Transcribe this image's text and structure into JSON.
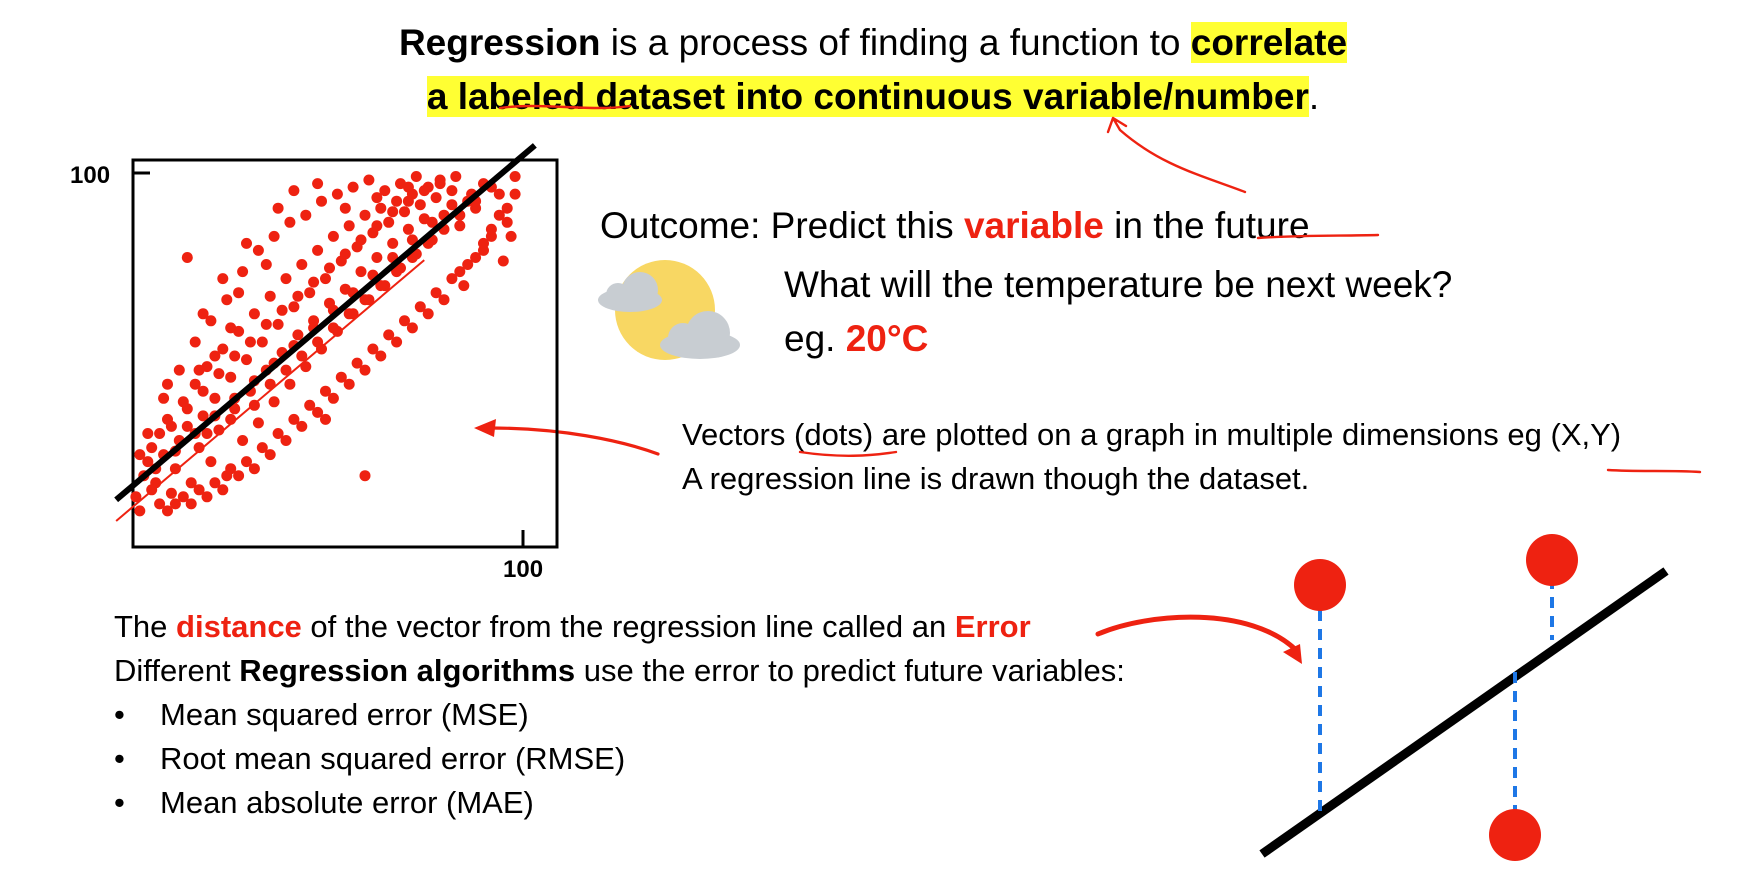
{
  "headline": {
    "term": "Regression",
    "middle": " is a process of finding a function to ",
    "highlight_1": "correlate ",
    "highlight_2a": "a ",
    "highlight_2b": "labeled",
    "highlight_2c": " dataset into continuous variable/number",
    "end": "."
  },
  "outcome": {
    "prefix": "Outcome: Predict this ",
    "keyword": "variable",
    "middle": " in the",
    "suffix": " future"
  },
  "question": "What will the temperature be next week?",
  "example": {
    "prefix": "eg. ",
    "value": "20°C"
  },
  "vectors": {
    "line1_a": "Vectors ",
    "line1_b": "(dots)",
    "line1_c": " are plotted on a graph in multiple dimensions eg ",
    "line1_d": "(X,Y)",
    "line2": "A regression line is drawn though the dataset."
  },
  "error_text": {
    "prefix": "The ",
    "distance": "distance",
    "middle": " of the vector from the regression line called an ",
    "error": "Error"
  },
  "algorithms_intro": {
    "prefix": "Different ",
    "bold": "Regression algorithms",
    "suffix": " use the error to predict future variables:"
  },
  "algorithms": [
    "Mean squared error (MSE)",
    "Root mean squared error (RMSE)",
    "Mean absolute error (MAE)"
  ],
  "colors": {
    "accent_red": "#ee2211",
    "highlight": "#ffff33",
    "error_line": "#1e77e6",
    "cloud": "#c8cdd2",
    "sun": "#f8d763"
  },
  "icons": {
    "weather": "partly-cloudy-icon"
  },
  "chart_data": {
    "type": "scatter",
    "title": "",
    "xlabel": "",
    "ylabel": "",
    "x_tick_labels": [
      "100"
    ],
    "y_tick_labels": [
      "100"
    ],
    "xlim": [
      0,
      100
    ],
    "ylim": [
      0,
      100
    ],
    "grid": false,
    "regression_line": {
      "slope": 0.95,
      "intercept": 10
    },
    "points": [
      [
        2,
        8
      ],
      [
        4,
        14
      ],
      [
        5,
        18
      ],
      [
        7,
        12
      ],
      [
        8,
        26
      ],
      [
        9,
        20
      ],
      [
        10,
        30
      ],
      [
        11,
        9
      ],
      [
        12,
        16
      ],
      [
        13,
        24
      ],
      [
        14,
        35
      ],
      [
        15,
        28
      ],
      [
        16,
        12
      ],
      [
        17,
        40
      ],
      [
        18,
        22
      ],
      [
        19,
        31
      ],
      [
        20,
        45
      ],
      [
        21,
        18
      ],
      [
        22,
        36
      ],
      [
        23,
        27
      ],
      [
        24,
        50
      ],
      [
        25,
        14
      ],
      [
        26,
        42
      ],
      [
        27,
        33
      ],
      [
        28,
        55
      ],
      [
        29,
        24
      ],
      [
        30,
        47
      ],
      [
        31,
        38
      ],
      [
        32,
        60
      ],
      [
        33,
        29
      ],
      [
        34,
        52
      ],
      [
        35,
        44
      ],
      [
        36,
        65
      ],
      [
        37,
        35
      ],
      [
        38,
        57
      ],
      [
        39,
        49
      ],
      [
        40,
        70
      ],
      [
        41,
        40
      ],
      [
        42,
        62
      ],
      [
        43,
        54
      ],
      [
        44,
        74
      ],
      [
        45,
        45
      ],
      [
        46,
        66
      ],
      [
        47,
        58
      ],
      [
        48,
        78
      ],
      [
        49,
        50
      ],
      [
        50,
        70
      ],
      [
        51,
        63
      ],
      [
        52,
        82
      ],
      [
        53,
        55
      ],
      [
        54,
        75
      ],
      [
        55,
        67
      ],
      [
        56,
        85
      ],
      [
        57,
        60
      ],
      [
        58,
        79
      ],
      [
        59,
        72
      ],
      [
        60,
        88
      ],
      [
        61,
        64
      ],
      [
        62,
        83
      ],
      [
        63,
        76
      ],
      [
        64,
        90
      ],
      [
        65,
        68
      ],
      [
        66,
        86
      ],
      [
        67,
        80
      ],
      [
        68,
        92
      ],
      [
        69,
        73
      ],
      [
        70,
        89
      ],
      [
        71,
        84
      ],
      [
        72,
        94
      ],
      [
        73,
        77
      ],
      [
        74,
        91
      ],
      [
        75,
        87
      ],
      [
        76,
        96
      ],
      [
        77,
        81
      ],
      [
        78,
        93
      ],
      [
        80,
        88
      ],
      [
        82,
        95
      ],
      [
        84,
        85
      ],
      [
        86,
        92
      ],
      [
        88,
        90
      ],
      [
        90,
        97
      ],
      [
        92,
        82
      ],
      [
        94,
        94
      ],
      [
        96,
        86
      ],
      [
        98,
        99
      ],
      [
        90,
        78
      ],
      [
        85,
        68
      ],
      [
        15,
        76
      ],
      [
        60,
        14
      ],
      [
        50,
        30
      ],
      [
        3,
        4
      ],
      [
        6,
        10
      ],
      [
        8,
        6
      ],
      [
        10,
        4
      ],
      [
        12,
        6
      ],
      [
        14,
        8
      ],
      [
        16,
        6
      ],
      [
        18,
        10
      ],
      [
        20,
        8
      ],
      [
        22,
        12
      ],
      [
        24,
        10
      ],
      [
        26,
        16
      ],
      [
        28,
        14
      ],
      [
        30,
        18
      ],
      [
        32,
        16
      ],
      [
        34,
        22
      ],
      [
        36,
        20
      ],
      [
        38,
        26
      ],
      [
        40,
        24
      ],
      [
        42,
        30
      ],
      [
        44,
        28
      ],
      [
        46,
        34
      ],
      [
        48,
        32
      ],
      [
        50,
        38
      ],
      [
        52,
        36
      ],
      [
        54,
        42
      ],
      [
        56,
        40
      ],
      [
        58,
        46
      ],
      [
        60,
        44
      ],
      [
        62,
        50
      ],
      [
        64,
        48
      ],
      [
        66,
        54
      ],
      [
        68,
        52
      ],
      [
        70,
        58
      ],
      [
        72,
        56
      ],
      [
        74,
        62
      ],
      [
        76,
        60
      ],
      [
        78,
        66
      ],
      [
        80,
        64
      ],
      [
        82,
        70
      ],
      [
        84,
        72
      ],
      [
        86,
        74
      ],
      [
        88,
        76
      ],
      [
        90,
        80
      ],
      [
        92,
        84
      ],
      [
        94,
        88
      ],
      [
        96,
        90
      ],
      [
        98,
        94
      ],
      [
        95,
        75
      ],
      [
        97,
        82
      ],
      [
        5,
        26
      ],
      [
        9,
        36
      ],
      [
        13,
        44
      ],
      [
        17,
        52
      ],
      [
        21,
        58
      ],
      [
        25,
        64
      ],
      [
        29,
        72
      ],
      [
        33,
        78
      ],
      [
        37,
        82
      ],
      [
        41,
        86
      ],
      [
        45,
        88
      ],
      [
        49,
        92
      ],
      [
        53,
        94
      ],
      [
        57,
        96
      ],
      [
        61,
        98
      ],
      [
        65,
        95
      ],
      [
        69,
        97
      ],
      [
        73,
        99
      ],
      [
        35,
        74
      ],
      [
        28,
        66
      ],
      [
        19,
        60
      ],
      [
        24,
        70
      ],
      [
        30,
        80
      ],
      [
        38,
        90
      ],
      [
        42,
        95
      ],
      [
        48,
        97
      ],
      [
        55,
        90
      ],
      [
        63,
        93
      ],
      [
        71,
        96
      ],
      [
        79,
        98
      ],
      [
        6,
        22
      ],
      [
        11,
        28
      ],
      [
        15,
        33
      ],
      [
        19,
        38
      ],
      [
        23,
        43
      ],
      [
        27,
        48
      ],
      [
        31,
        52
      ],
      [
        35,
        57
      ],
      [
        39,
        61
      ],
      [
        43,
        65
      ],
      [
        47,
        69
      ],
      [
        51,
        73
      ],
      [
        55,
        77
      ],
      [
        59,
        81
      ],
      [
        63,
        85
      ],
      [
        67,
        89
      ],
      [
        71,
        92
      ],
      [
        75,
        95
      ],
      [
        79,
        97
      ],
      [
        83,
        99
      ],
      [
        7,
        16
      ],
      [
        12,
        21
      ],
      [
        17,
        26
      ],
      [
        22,
        31
      ],
      [
        27,
        36
      ],
      [
        32,
        41
      ],
      [
        37,
        46
      ],
      [
        42,
        51
      ],
      [
        47,
        56
      ],
      [
        52,
        61
      ],
      [
        57,
        66
      ],
      [
        62,
        71
      ],
      [
        67,
        76
      ],
      [
        72,
        81
      ],
      [
        77,
        86
      ],
      [
        82,
        91
      ],
      [
        87,
        94
      ],
      [
        92,
        96
      ],
      [
        3,
        20
      ],
      [
        10,
        40
      ],
      [
        20,
        26
      ],
      [
        26,
        30
      ],
      [
        32,
        34
      ],
      [
        36,
        40
      ],
      [
        40,
        44
      ],
      [
        44,
        48
      ],
      [
        48,
        52
      ],
      [
        52,
        56
      ],
      [
        56,
        60
      ],
      [
        60,
        64
      ],
      [
        64,
        68
      ],
      [
        68,
        72
      ],
      [
        72,
        76
      ],
      [
        76,
        80
      ],
      [
        80,
        84
      ],
      [
        84,
        88
      ],
      [
        88,
        92
      ],
      [
        18,
        44
      ],
      [
        22,
        48
      ],
      [
        26,
        56
      ]
    ]
  }
}
